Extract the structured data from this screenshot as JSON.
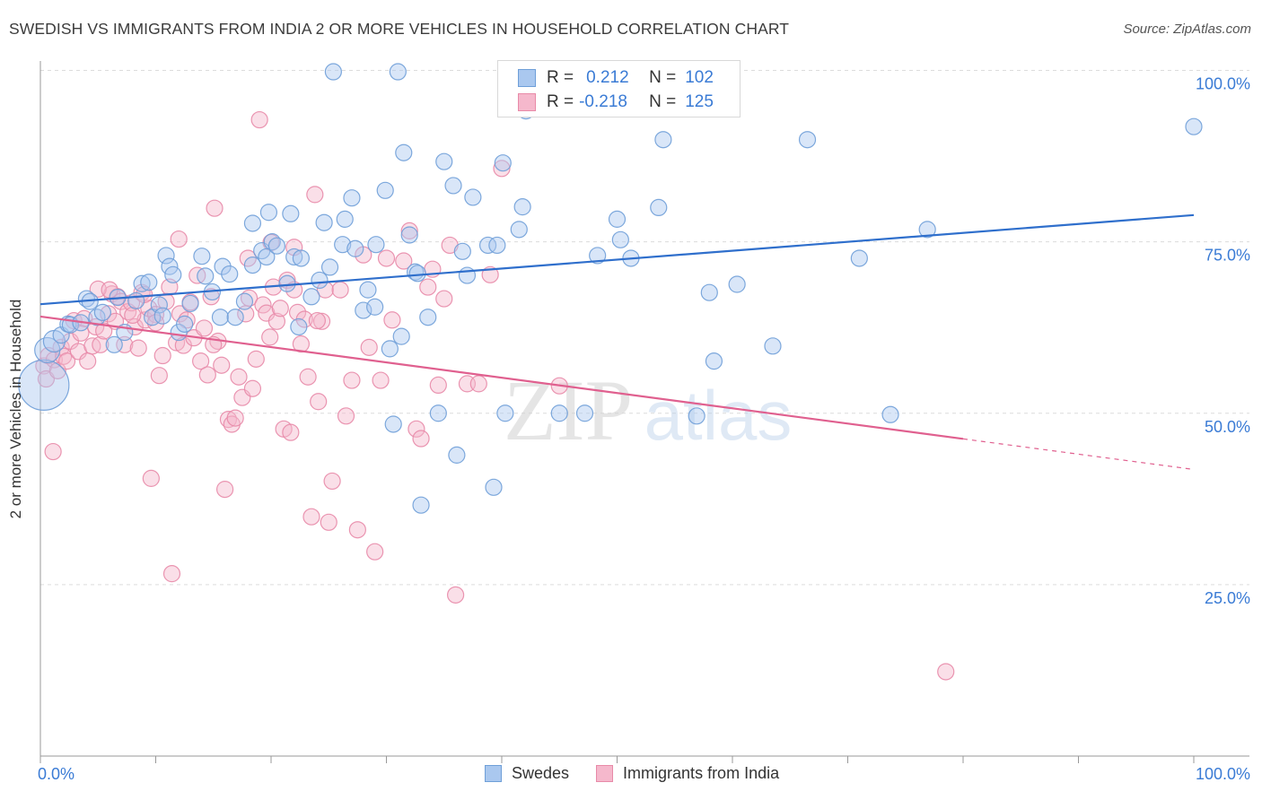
{
  "title": "SWEDISH VS IMMIGRANTS FROM INDIA 2 OR MORE VEHICLES IN HOUSEHOLD CORRELATION CHART",
  "source": "Source: ZipAtlas.com",
  "watermark": {
    "zip": "ZIP",
    "atlas": "atlas"
  },
  "legend": {
    "rows": [
      {
        "r_label": "R =",
        "r_value": "0.212",
        "n_label": "N =",
        "n_value": "102"
      },
      {
        "r_label": "R =",
        "r_value": "-0.218",
        "n_label": "N =",
        "n_value": "125"
      }
    ]
  },
  "bottom_legend": [
    "Swedes",
    "Immigrants from India"
  ],
  "colors": {
    "blue_fill": "#aac8ef",
    "blue_stroke": "#6f9fd8",
    "blue_line": "#2f6fcc",
    "pink_fill": "#f5b8cc",
    "pink_stroke": "#e88aa8",
    "pink_line": "#e0608f",
    "tick_label": "#3a7bd5",
    "grid": "#dcdcdc"
  },
  "chart_data": {
    "type": "scatter",
    "xlabel": "",
    "ylabel": "2 or more Vehicles in Household",
    "xlim": [
      0,
      100
    ],
    "ylim": [
      0,
      105
    ],
    "x_tick_labels": [
      "0.0%",
      "100.0%"
    ],
    "y_ticks": [
      25,
      50,
      75,
      100
    ],
    "y_tick_labels": [
      "25.0%",
      "50.0%",
      "75.0%",
      "100.0%"
    ],
    "grid": true,
    "series": [
      {
        "name": "Swedes",
        "color": "#6f9fd8",
        "trend": {
          "x": [
            0,
            100
          ],
          "y": [
            65.9,
            78.9
          ],
          "solid_until": 100
        },
        "points": [
          [
            0.3,
            54.1
          ],
          [
            0.6,
            59.2
          ],
          [
            1.2,
            60.5
          ],
          [
            1.8,
            61.4
          ],
          [
            2.4,
            63.0
          ],
          [
            2.6,
            62.9
          ],
          [
            3.5,
            63.2
          ],
          [
            4.0,
            66.7
          ],
          [
            4.3,
            66.3
          ],
          [
            4.9,
            64.0
          ],
          [
            5.4,
            64.7
          ],
          [
            6.4,
            60.0
          ],
          [
            6.7,
            66.9
          ],
          [
            7.3,
            61.8
          ],
          [
            8.3,
            66.4
          ],
          [
            8.8,
            68.9
          ],
          [
            9.4,
            69.1
          ],
          [
            9.7,
            64.0
          ],
          [
            10.3,
            65.8
          ],
          [
            10.6,
            64.2
          ],
          [
            10.9,
            73.0
          ],
          [
            11.2,
            71.4
          ],
          [
            11.5,
            70.2
          ],
          [
            12.0,
            61.8
          ],
          [
            12.5,
            63.0
          ],
          [
            13.0,
            66.0
          ],
          [
            14.0,
            72.9
          ],
          [
            14.3,
            70.0
          ],
          [
            14.9,
            67.7
          ],
          [
            15.6,
            64.0
          ],
          [
            15.8,
            71.4
          ],
          [
            16.4,
            70.3
          ],
          [
            16.9,
            64.0
          ],
          [
            17.7,
            66.3
          ],
          [
            18.4,
            71.6
          ],
          [
            18.4,
            77.7
          ],
          [
            19.2,
            73.7
          ],
          [
            19.6,
            72.8
          ],
          [
            19.8,
            79.3
          ],
          [
            20.1,
            75.0
          ],
          [
            20.5,
            74.4
          ],
          [
            21.4,
            68.9
          ],
          [
            21.7,
            79.1
          ],
          [
            22.0,
            72.8
          ],
          [
            22.4,
            62.6
          ],
          [
            22.6,
            72.6
          ],
          [
            23.5,
            67.0
          ],
          [
            24.2,
            69.4
          ],
          [
            24.6,
            77.8
          ],
          [
            25.1,
            71.3
          ],
          [
            25.4,
            99.8
          ],
          [
            26.2,
            74.6
          ],
          [
            26.4,
            78.3
          ],
          [
            27.0,
            81.4
          ],
          [
            27.3,
            74.0
          ],
          [
            28.0,
            65.0
          ],
          [
            28.4,
            68.0
          ],
          [
            29.0,
            65.5
          ],
          [
            29.1,
            74.6
          ],
          [
            29.9,
            82.5
          ],
          [
            30.3,
            59.4
          ],
          [
            30.6,
            48.4
          ],
          [
            31.0,
            99.8
          ],
          [
            31.3,
            61.2
          ],
          [
            31.5,
            88.0
          ],
          [
            32.0,
            76.0
          ],
          [
            32.5,
            70.6
          ],
          [
            32.7,
            70.4
          ],
          [
            33.0,
            36.6
          ],
          [
            33.6,
            64.0
          ],
          [
            34.5,
            50.0
          ],
          [
            35.0,
            86.7
          ],
          [
            35.8,
            83.2
          ],
          [
            36.1,
            43.9
          ],
          [
            36.6,
            73.6
          ],
          [
            37.0,
            70.1
          ],
          [
            37.5,
            81.5
          ],
          [
            38.8,
            74.5
          ],
          [
            39.3,
            39.2
          ],
          [
            39.6,
            74.5
          ],
          [
            40.1,
            86.5
          ],
          [
            40.3,
            50.0
          ],
          [
            41.5,
            76.8
          ],
          [
            41.8,
            80.1
          ],
          [
            42.1,
            94.1
          ],
          [
            45.0,
            50.0
          ],
          [
            47.2,
            50.0
          ],
          [
            48.3,
            73.0
          ],
          [
            50.0,
            78.3
          ],
          [
            50.3,
            75.3
          ],
          [
            51.2,
            72.6
          ],
          [
            53.6,
            80.0
          ],
          [
            54.0,
            89.9
          ],
          [
            56.9,
            49.6
          ],
          [
            58.0,
            67.6
          ],
          [
            58.4,
            57.6
          ],
          [
            60.4,
            68.8
          ],
          [
            63.5,
            59.8
          ],
          [
            66.5,
            89.9
          ],
          [
            71.0,
            72.6
          ],
          [
            73.7,
            49.8
          ],
          [
            76.9,
            76.8
          ],
          [
            100.0,
            91.8
          ]
        ],
        "sizes": {
          "0": 28,
          "1": 14,
          "2": 12
        }
      },
      {
        "name": "Immigrants from India",
        "color": "#e88aa8",
        "trend": {
          "x": [
            0,
            100
          ],
          "y": [
            64.1,
            41.8
          ],
          "solid_until": 80
        },
        "points": [
          [
            0.3,
            56.9
          ],
          [
            0.5,
            55.0
          ],
          [
            0.7,
            58.4
          ],
          [
            1.1,
            44.4
          ],
          [
            1.2,
            57.8
          ],
          [
            1.5,
            56.2
          ],
          [
            1.8,
            59.6
          ],
          [
            2.0,
            58.3
          ],
          [
            2.3,
            57.6
          ],
          [
            2.6,
            60.5
          ],
          [
            2.9,
            63.5
          ],
          [
            3.3,
            59.0
          ],
          [
            3.5,
            61.7
          ],
          [
            3.8,
            63.8
          ],
          [
            4.1,
            57.6
          ],
          [
            4.5,
            59.8
          ],
          [
            4.8,
            62.6
          ],
          [
            5.2,
            60.0
          ],
          [
            5.5,
            62.0
          ],
          [
            5.9,
            64.5
          ],
          [
            6.2,
            67.4
          ],
          [
            6.5,
            63.4
          ],
          [
            6.7,
            67.0
          ],
          [
            7.0,
            66.3
          ],
          [
            7.3,
            60.0
          ],
          [
            7.6,
            64.8
          ],
          [
            7.9,
            66.1
          ],
          [
            8.2,
            62.6
          ],
          [
            8.5,
            59.5
          ],
          [
            8.8,
            67.6
          ],
          [
            9.1,
            63.6
          ],
          [
            9.4,
            65.3
          ],
          [
            9.6,
            40.5
          ],
          [
            10.0,
            64.4
          ],
          [
            10.3,
            55.5
          ],
          [
            10.6,
            58.4
          ],
          [
            10.9,
            66.3
          ],
          [
            11.2,
            68.4
          ],
          [
            11.4,
            26.6
          ],
          [
            11.8,
            60.3
          ],
          [
            12.1,
            64.5
          ],
          [
            12.4,
            59.9
          ],
          [
            12.7,
            63.6
          ],
          [
            13.0,
            66.2
          ],
          [
            13.3,
            61.0
          ],
          [
            13.6,
            70.1
          ],
          [
            13.9,
            57.6
          ],
          [
            14.2,
            62.4
          ],
          [
            14.5,
            55.6
          ],
          [
            14.8,
            67.0
          ],
          [
            15.1,
            79.9
          ],
          [
            15.4,
            60.5
          ],
          [
            15.7,
            57.0
          ],
          [
            16.0,
            38.9
          ],
          [
            16.3,
            49.1
          ],
          [
            16.6,
            48.4
          ],
          [
            16.9,
            49.3
          ],
          [
            17.2,
            55.3
          ],
          [
            17.5,
            52.3
          ],
          [
            17.8,
            64.5
          ],
          [
            18.1,
            66.8
          ],
          [
            18.4,
            53.6
          ],
          [
            18.7,
            57.9
          ],
          [
            19.0,
            92.8
          ],
          [
            19.3,
            65.8
          ],
          [
            19.6,
            64.6
          ],
          [
            19.9,
            61.1
          ],
          [
            20.2,
            68.4
          ],
          [
            20.5,
            63.4
          ],
          [
            20.8,
            65.3
          ],
          [
            21.1,
            47.7
          ],
          [
            21.4,
            69.4
          ],
          [
            21.7,
            47.2
          ],
          [
            22.0,
            68.0
          ],
          [
            22.3,
            64.7
          ],
          [
            22.6,
            60.1
          ],
          [
            22.9,
            63.7
          ],
          [
            23.2,
            55.3
          ],
          [
            23.5,
            34.9
          ],
          [
            23.8,
            81.9
          ],
          [
            24.1,
            51.7
          ],
          [
            24.4,
            63.4
          ],
          [
            24.7,
            68.0
          ],
          [
            25.0,
            34.1
          ],
          [
            25.3,
            40.1
          ],
          [
            26.0,
            68.0
          ],
          [
            26.5,
            49.6
          ],
          [
            27.0,
            54.8
          ],
          [
            27.5,
            33.0
          ],
          [
            28.0,
            73.1
          ],
          [
            28.5,
            59.6
          ],
          [
            29.0,
            29.8
          ],
          [
            29.5,
            54.8
          ],
          [
            30.0,
            72.6
          ],
          [
            30.5,
            63.6
          ],
          [
            31.5,
            72.2
          ],
          [
            32.0,
            76.6
          ],
          [
            32.6,
            47.7
          ],
          [
            33.0,
            46.3
          ],
          [
            33.6,
            68.4
          ],
          [
            34.0,
            71.0
          ],
          [
            34.5,
            54.1
          ],
          [
            35.0,
            66.7
          ],
          [
            35.5,
            74.5
          ],
          [
            36.0,
            23.5
          ],
          [
            37.0,
            54.3
          ],
          [
            38.0,
            54.3
          ],
          [
            39.0,
            70.2
          ],
          [
            40.0,
            85.7
          ],
          [
            45.0,
            54.0
          ],
          [
            78.5,
            12.3
          ],
          [
            5.0,
            68.1
          ],
          [
            6.0,
            68.0
          ],
          [
            8.0,
            64.3
          ],
          [
            9.0,
            67.3
          ],
          [
            10.0,
            63.2
          ],
          [
            12.0,
            75.4
          ],
          [
            15.0,
            60.0
          ],
          [
            18.0,
            72.6
          ],
          [
            20.0,
            74.9
          ],
          [
            22.0,
            74.2
          ],
          [
            24.0,
            63.5
          ]
        ],
        "sizes": {}
      }
    ]
  }
}
